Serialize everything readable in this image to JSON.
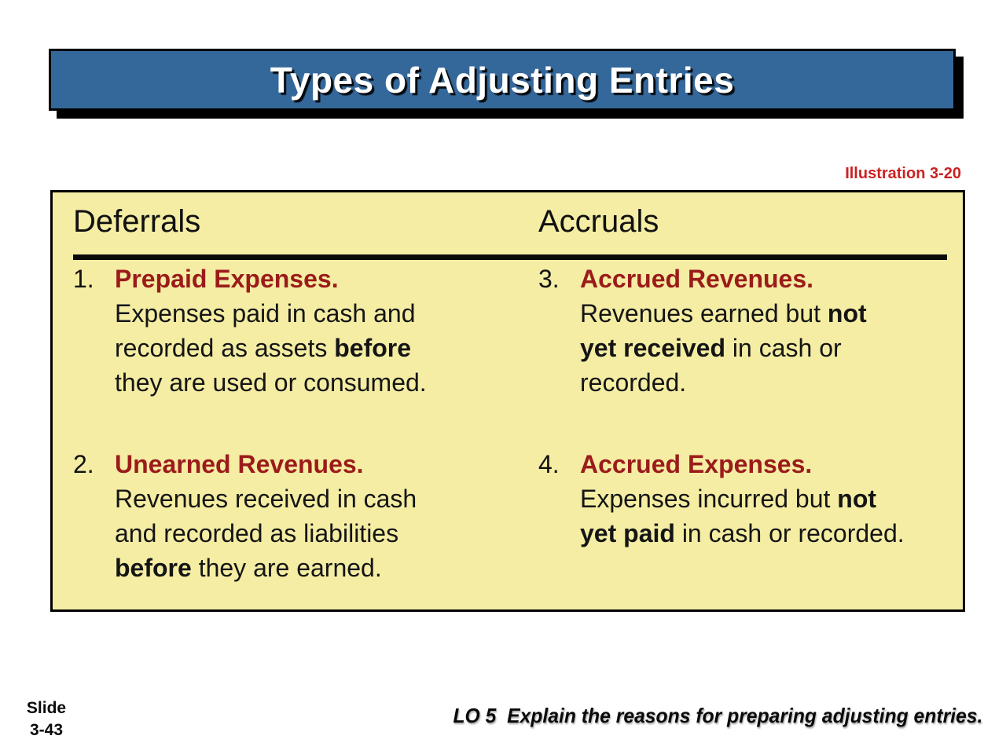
{
  "colors": {
    "banner_blue": "#35689A",
    "panel_yellow": "#F4EDA3",
    "term_red": "#9B1B1B",
    "illustration_red": "#CC2222"
  },
  "title_banner": {
    "text": "Types of Adjusting Entries"
  },
  "illustration_label": "Illustration 3-20",
  "panel": {
    "columns": [
      {
        "header": "Deferrals",
        "items": [
          {
            "num": "1.",
            "title": "Prepaid Expenses.",
            "body": [
              [
                {
                  "t": "Expenses paid in cash and",
                  "b": false
                }
              ],
              [
                {
                  "t": "recorded as assets ",
                  "b": false
                },
                {
                  "t": "before",
                  "b": true
                }
              ],
              [
                {
                  "t": "they are used or consumed.",
                  "b": false
                }
              ]
            ]
          },
          {
            "num": "2.",
            "title": "Unearned Revenues.",
            "body": [
              [
                {
                  "t": "Revenues received in cash",
                  "b": false
                }
              ],
              [
                {
                  "t": "and recorded as liabilities",
                  "b": false
                }
              ],
              [
                {
                  "t": "before",
                  "b": true
                },
                {
                  "t": " they are earned.",
                  "b": false
                }
              ]
            ]
          }
        ]
      },
      {
        "header": "Accruals",
        "items": [
          {
            "num": "3.",
            "title": "Accrued Revenues.",
            "body": [
              [
                {
                  "t": "Revenues earned but ",
                  "b": false
                },
                {
                  "t": "not",
                  "b": true
                }
              ],
              [
                {
                  "t": "yet received",
                  "b": true
                },
                {
                  "t": " in cash or",
                  "b": false
                }
              ],
              [
                {
                  "t": "recorded.",
                  "b": false
                }
              ]
            ]
          },
          {
            "num": "4.",
            "title": "Accrued Expenses.",
            "body": [
              [
                {
                  "t": "Expenses incurred but ",
                  "b": false
                },
                {
                  "t": "not",
                  "b": true
                }
              ],
              [
                {
                  "t": "yet paid",
                  "b": true
                },
                {
                  "t": " in cash or recorded.",
                  "b": false
                }
              ]
            ]
          }
        ]
      }
    ]
  },
  "footer": {
    "slide_label": "Slide",
    "slide_number": "3-43",
    "lo_text": "LO 5  Explain the reasons for preparing adjusting entries."
  }
}
